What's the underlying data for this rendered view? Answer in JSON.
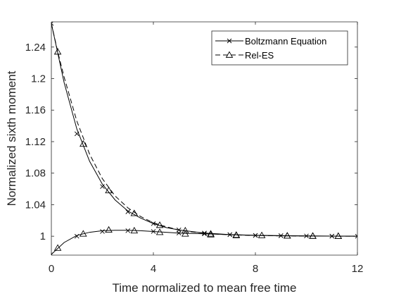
{
  "chart_data": {
    "type": "line",
    "title": "",
    "xlabel": "Time normalized to mean free time",
    "ylabel": "Normalized sixth moment",
    "xlim": [
      0,
      12
    ],
    "ylim": [
      0.976,
      1.272
    ],
    "xticks": [
      "0",
      "4",
      "8",
      "12"
    ],
    "yticks": [
      "1",
      "1.04",
      "1.08",
      "1.12",
      "1.16",
      "1.2",
      "1.24"
    ],
    "grid": false,
    "legend_position": "top-right",
    "legend": [
      "Boltzmann Equation",
      "Rel-ES"
    ],
    "series": [
      {
        "name": "Boltzmann Equation",
        "marker": "x",
        "line_style": "solid",
        "color": "#000000",
        "curves": [
          {
            "x": [
              0,
              0.5,
              1,
              1.5,
              2,
              2.5,
              3,
              3.5,
              4,
              4.5,
              5,
              5.5,
              6,
              6.5,
              7,
              7.5,
              8,
              9,
              10,
              11,
              12
            ],
            "y": [
              1.27,
              1.195,
              1.136,
              1.095,
              1.066,
              1.046,
              1.032,
              1.023,
              1.016,
              1.011,
              1.008,
              1.006,
              1.004,
              1.003,
              1.002,
              1.0015,
              1.001,
              1.0006,
              1.0003,
              1.0001,
              1.0
            ]
          },
          {
            "x": [
              0,
              0.5,
              1,
              1.5,
              2,
              2.5,
              3,
              3.5,
              4,
              5,
              6,
              7,
              8,
              9,
              10,
              11,
              12
            ],
            "y": [
              0.977,
              0.992,
              1.001,
              1.005,
              1.007,
              1.0075,
              1.0075,
              1.007,
              1.006,
              1.004,
              1.003,
              1.002,
              1.0012,
              1.0007,
              1.0004,
              1.0002,
              1.0
            ]
          }
        ],
        "marker_points": [
          {
            "x": 0,
            "y": 1.27
          },
          {
            "x": 1,
            "y": 1.13
          },
          {
            "x": 2,
            "y": 1.063
          },
          {
            "x": 3,
            "y": 1.031
          },
          {
            "x": 4,
            "y": 1.016
          },
          {
            "x": 5,
            "y": 1.008
          },
          {
            "x": 6,
            "y": 1.004
          },
          {
            "x": 7,
            "y": 1.002
          },
          {
            "x": 8,
            "y": 1.001
          },
          {
            "x": 9,
            "y": 1.0006
          },
          {
            "x": 11,
            "y": 1.0001
          },
          {
            "x": 12,
            "y": 1.0
          },
          {
            "x": 0,
            "y": 0.977
          },
          {
            "x": 1,
            "y": 1.0
          },
          {
            "x": 2,
            "y": 1.006
          },
          {
            "x": 3,
            "y": 1.007
          },
          {
            "x": 4,
            "y": 1.006
          },
          {
            "x": 5,
            "y": 1.004
          },
          {
            "x": 6,
            "y": 1.003
          },
          {
            "x": 7,
            "y": 1.002
          },
          {
            "x": 8,
            "y": 1.001
          },
          {
            "x": 9,
            "y": 1.0006
          },
          {
            "x": 10,
            "y": 1.0003
          },
          {
            "x": 11,
            "y": 1.0001
          }
        ]
      },
      {
        "name": "Rel-ES",
        "marker": "triangle",
        "line_style": "dashed",
        "color": "#000000",
        "curves": [
          {
            "x": [
              0,
              0.25,
              0.5,
              1,
              1.5,
              2,
              2.5,
              3,
              3.5,
              4,
              4.5,
              5,
              5.5,
              6,
              6.5,
              7,
              7.5,
              8,
              9,
              10,
              11,
              12
            ],
            "y": [
              1.27,
              1.234,
              1.202,
              1.146,
              1.104,
              1.073,
              1.051,
              1.036,
              1.025,
              1.017,
              1.012,
              1.008,
              1.0055,
              1.0038,
              1.0026,
              1.0018,
              1.0013,
              1.0009,
              1.0004,
              1.0002,
              1.0001,
              1.0
            ]
          }
        ],
        "marker_points": [
          {
            "x": 0.25,
            "y": 1.234
          },
          {
            "x": 1.25,
            "y": 1.117
          },
          {
            "x": 2.25,
            "y": 1.058
          },
          {
            "x": 3.25,
            "y": 1.029
          },
          {
            "x": 4.25,
            "y": 1.014
          },
          {
            "x": 5.25,
            "y": 1.007
          },
          {
            "x": 6.25,
            "y": 1.003
          },
          {
            "x": 7.25,
            "y": 1.0015
          },
          {
            "x": 8.25,
            "y": 1.001
          },
          {
            "x": 9.25,
            "y": 1.0005
          },
          {
            "x": 10.25,
            "y": 1.0002
          },
          {
            "x": 11.25,
            "y": 1.0001
          },
          {
            "x": 0.25,
            "y": 0.985
          },
          {
            "x": 1.25,
            "y": 1.003
          },
          {
            "x": 2.25,
            "y": 1.008
          },
          {
            "x": 3.25,
            "y": 1.007
          },
          {
            "x": 4.25,
            "y": 1.005
          },
          {
            "x": 5.25,
            "y": 1.003
          },
          {
            "x": 6.25,
            "y": 1.002
          },
          {
            "x": 7.25,
            "y": 1.001
          },
          {
            "x": 9.25,
            "y": 1.0005
          },
          {
            "x": 10.25,
            "y": 1.0002
          },
          {
            "x": 11.25,
            "y": 1.0001
          }
        ]
      }
    ]
  }
}
